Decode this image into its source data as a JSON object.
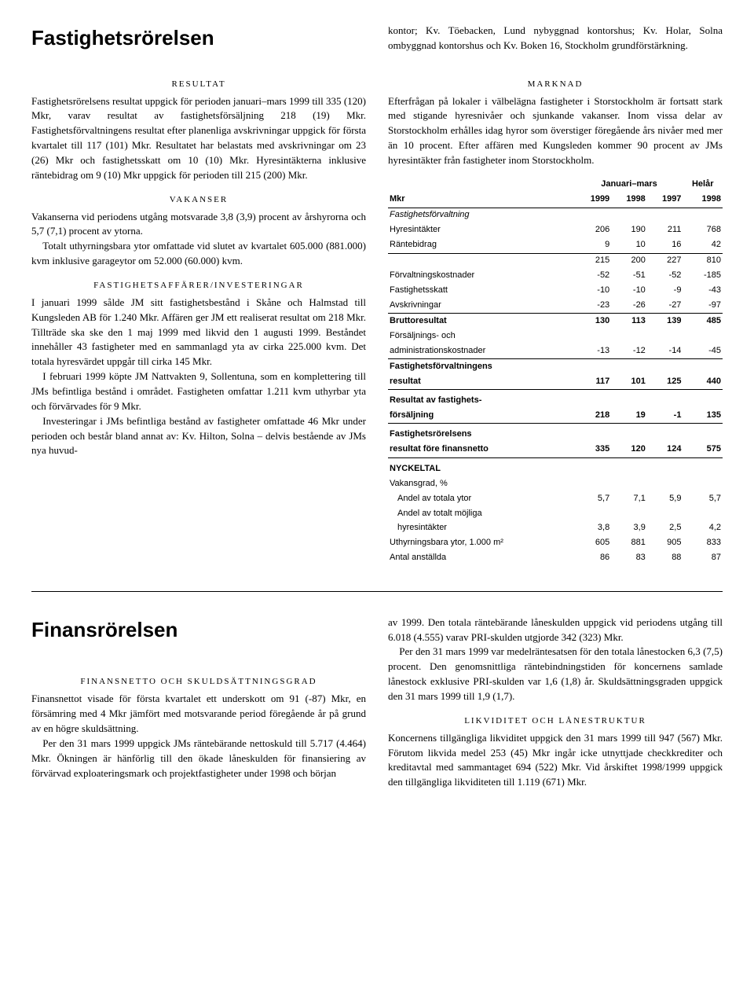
{
  "s1": {
    "heading": "Fastighetsrörelsen",
    "intro_right": "kontor; Kv. Töebacken, Lund nybyggnad kontorshus; Kv. Holar, Solna ombyggnad kontorshus och Kv. Boken 16, Stockholm grundförstärkning.",
    "sub_resultat": "RESULTAT",
    "p_resultat": "Fastighetsrörelsens resultat uppgick för perioden januari–mars 1999 till 335 (120) Mkr, varav resultat av fastighetsförsäljning 218 (19) Mkr. Fastighetsförvaltningens resultat efter planenliga avskrivningar uppgick för första kvartalet till 117 (101) Mkr. Resultatet har belastats med avskrivningar om 23 (26) Mkr och fastighetsskatt om 10 (10) Mkr. Hyresintäkterna inklusive räntebidrag om 9 (10) Mkr uppgick för perioden till 215 (200) Mkr.",
    "sub_vakanser": "VAKANSER",
    "p_vak1": "Vakanserna vid periodens utgång motsvarade 3,8 (3,9) procent av årshyrorna och 5,7 (7,1) procent av ytorna.",
    "p_vak2": "Totalt uthyrningsbara ytor omfattade vid slutet av kvartalet 605.000 (881.000) kvm inklusive garageytor om 52.000 (60.000) kvm.",
    "sub_affarer": "FASTIGHETSAFFÄRER/INVESTERINGAR",
    "p_aff1": "I januari 1999 sålde JM sitt fastighetsbestånd i Skåne och Halmstad till Kungsleden AB för 1.240 Mkr. Affären ger JM ett realiserat resultat om 218 Mkr. Tillträde ska ske den 1 maj 1999 med likvid den 1 augusti 1999. Beståndet innehåller 43 fastigheter med en sammanlagd yta av cirka 225.000 kvm. Det totala hyresvärdet uppgår till cirka 145 Mkr.",
    "p_aff2": "I februari 1999 köpte JM Nattvakten 9, Sollentuna, som en komplettering till JMs befintliga bestånd i området. Fastigheten omfattar 1.211 kvm uthyrbar yta och förvärvades för 9 Mkr.",
    "p_aff3": "Investeringar i JMs befintliga bestånd av fastigheter omfattade 46 Mkr under perioden och består bland annat av: Kv. Hilton, Solna – delvis bestående av JMs nya huvud-",
    "sub_marknad": "MARKNAD",
    "p_marknad": "Efterfrågan på lokaler i välbelägna fastigheter i Storstockholm är fortsatt stark med stigande hyresnivåer och sjunkande vakanser. Inom vissa delar av Storstockholm erhålles idag hyror som överstiger föregående års nivåer med mer än 10 procent. Efter affären med Kungsleden kommer 90 procent av JMs hyresintäkter från fastigheter inom Storstockholm.",
    "table": {
      "font_family": "Arial",
      "header_group1": "Januari–mars",
      "header_group2": "Helår",
      "col_labels": [
        "Mkr",
        "1999",
        "1998",
        "1997",
        "1998"
      ],
      "section1": "Fastighetsförvaltning",
      "rows1": [
        {
          "label": "Hyresintäkter",
          "v": [
            "206",
            "190",
            "211",
            "768"
          ]
        },
        {
          "label": "Räntebidrag",
          "v": [
            "9",
            "10",
            "16",
            "42"
          ],
          "under": true
        },
        {
          "label": "",
          "v": [
            "215",
            "200",
            "227",
            "810"
          ]
        },
        {
          "label": "Förvaltningskostnader",
          "v": [
            "-52",
            "-51",
            "-52",
            "-185"
          ]
        },
        {
          "label": "Fastighetsskatt",
          "v": [
            "-10",
            "-10",
            "-9",
            "-43"
          ]
        },
        {
          "label": "Avskrivningar",
          "v": [
            "-23",
            "-26",
            "-27",
            "-97"
          ],
          "under": true
        },
        {
          "label": "Bruttoresultat",
          "v": [
            "130",
            "113",
            "139",
            "485"
          ],
          "bold": true
        }
      ],
      "rows2_label1": "Försäljnings- och",
      "rows2_label2": "administrationskostnader",
      "rows2_vals": [
        "-13",
        "-12",
        "-14",
        "-45"
      ],
      "rows3_label1": "Fastighetsförvaltningens",
      "rows3_label2": "resultat",
      "rows3_vals": [
        "117",
        "101",
        "125",
        "440"
      ],
      "rows4_label1": "Resultat av fastighets-",
      "rows4_label2": "försäljning",
      "rows4_vals": [
        "218",
        "19",
        "-1",
        "135"
      ],
      "rows5_label1": "Fastighetsrörelsens",
      "rows5_label2": "resultat före finansnetto",
      "rows5_vals": [
        "335",
        "120",
        "124",
        "575"
      ],
      "nyckeltal": "NYCKELTAL",
      "vakansgrad": "Vakansgrad, %",
      "nyck_rows": [
        {
          "label": "Andel av totala ytor",
          "v": [
            "5,7",
            "7,1",
            "5,9",
            "5,7"
          ],
          "indent": true
        },
        {
          "label": "Andel av totalt möjliga",
          "v": [
            "",
            "",
            "",
            ""
          ],
          "indent": true
        },
        {
          "label": "hyresintäkter",
          "v": [
            "3,8",
            "3,9",
            "2,5",
            "4,2"
          ],
          "indent": true
        },
        {
          "label": "Uthyrningsbara ytor, 1.000 m²",
          "v": [
            "605",
            "881",
            "905",
            "833"
          ]
        },
        {
          "label": "Antal anställda",
          "v": [
            "86",
            "83",
            "88",
            "87"
          ]
        }
      ]
    }
  },
  "s2": {
    "heading": "Finansrörelsen",
    "sub_fin": "FINANSNETTO OCH SKULDSÄTTNINGSGRAD",
    "p_fin1": "Finansnettot visade för första kvartalet ett underskott om 91 (-87) Mkr, en försämring med 4 Mkr jämfört med motsvarande period föregående år på grund av en högre skuldsättning.",
    "p_fin2": "Per den 31 mars 1999 uppgick JMs räntebärande nettoskuld till 5.717 (4.464) Mkr. Ökningen är hänförlig till den ökade låneskulden för finansiering av förvärvad exploateringsmark och projektfastigheter under 1998 och början",
    "p_right1": "av 1999. Den totala räntebärande låneskulden uppgick vid periodens utgång till 6.018 (4.555) varav PRI-skulden utgjorde 342 (323) Mkr.",
    "p_right2": "Per den 31 mars 1999 var medelräntesatsen för den totala lånestocken 6,3 (7,5) procent. Den genomsnittliga räntebindningstiden för koncernens samlade lånestock exklusive PRI-skulden var 1,6 (1,8) år. Skuldsättningsgraden uppgick den 31 mars 1999 till 1,9 (1,7).",
    "sub_likv": "LIKVIDITET OCH LÅNESTRUKTUR",
    "p_likv": "Koncernens tillgängliga likviditet uppgick den 31 mars 1999 till 947 (567) Mkr. Förutom likvida medel 253 (45) Mkr ingår icke utnyttjade checkkrediter och kreditavtal med sammantaget 694 (522) Mkr. Vid årskiftet 1998/1999 uppgick den tillgängliga likviditeten till 1.119 (671) Mkr."
  }
}
